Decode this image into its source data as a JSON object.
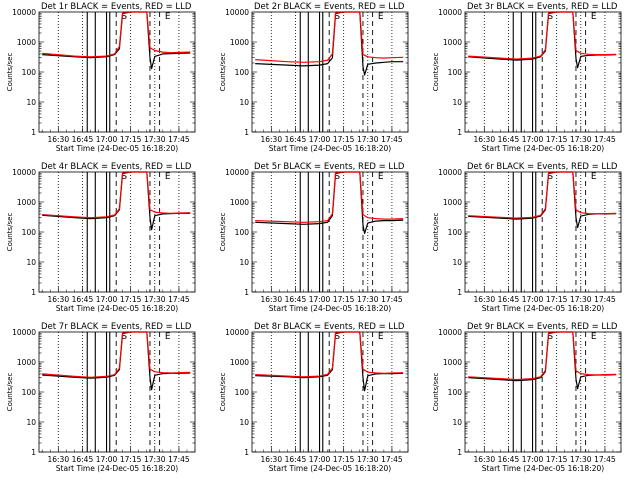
{
  "colors": {
    "events": "#000000",
    "lld": "#ff0000",
    "background": "#ffffff"
  },
  "chart_data": [
    {
      "type": "line",
      "title": "Det 1r  BLACK = Events, RED = LLD",
      "ylabel": "Counts/sec",
      "xlabel": "Start Time (24-Dec-05 16:18:20)",
      "y_scale": "log",
      "ylim": [
        1,
        10000
      ],
      "y_tick_labels": [
        "1",
        "10",
        "100",
        "1000",
        "10000"
      ],
      "x_tick_labels": [
        "16:30",
        "16:45",
        "17:00",
        "17:15",
        "17:30",
        "17:45"
      ],
      "annotations": [
        "S",
        "E"
      ],
      "grid": false,
      "series": [
        {
          "color": "black",
          "x": [
            "16:20",
            "16:40",
            "16:50",
            "17:00",
            "17:05",
            "17:08",
            "17:10",
            "17:15",
            "17:20",
            "17:25",
            "17:27",
            "17:28",
            "17:30",
            "17:35",
            "17:40",
            "17:45",
            "17:52"
          ],
          "y": [
            380,
            320,
            300,
            320,
            380,
            600,
            9000,
            10000,
            10000,
            10000,
            300,
            130,
            330,
            400,
            410,
            420,
            430
          ]
        },
        {
          "color": "red",
          "x": [
            "16:20",
            "16:40",
            "16:50",
            "17:00",
            "17:05",
            "17:08",
            "17:10",
            "17:15",
            "17:20",
            "17:25",
            "17:27",
            "17:30",
            "17:35",
            "17:40",
            "17:45",
            "17:52"
          ],
          "y": [
            420,
            340,
            320,
            340,
            400,
            700,
            10000,
            10000,
            10000,
            10000,
            650,
            520,
            460,
            440,
            450,
            460
          ]
        }
      ]
    },
    {
      "type": "line",
      "title": "Det 2r  BLACK = Events, RED = LLD",
      "ylabel": "Counts/sec",
      "xlabel": "Start Time (24-Dec-05 16:18:20)",
      "y_scale": "log",
      "ylim": [
        1,
        10000
      ],
      "y_tick_labels": [
        "1",
        "10",
        "100",
        "1000",
        "10000"
      ],
      "x_tick_labels": [
        "16:30",
        "16:45",
        "17:00",
        "17:15",
        "17:30",
        "17:45"
      ],
      "annotations": [
        "S",
        "E"
      ],
      "grid": false,
      "series": [
        {
          "color": "black",
          "x": [
            "16:20",
            "16:40",
            "16:50",
            "17:00",
            "17:05",
            "17:08",
            "17:10",
            "17:15",
            "17:20",
            "17:25",
            "17:27",
            "17:28",
            "17:30",
            "17:35",
            "17:40",
            "17:45",
            "17:52"
          ],
          "y": [
            190,
            170,
            160,
            170,
            190,
            300,
            9000,
            10000,
            10000,
            10000,
            150,
            80,
            180,
            200,
            210,
            220,
            220
          ]
        },
        {
          "color": "red",
          "x": [
            "16:20",
            "16:40",
            "16:50",
            "17:00",
            "17:05",
            "17:08",
            "17:10",
            "17:15",
            "17:20",
            "17:25",
            "17:27",
            "17:30",
            "17:35",
            "17:40",
            "17:45",
            "17:52"
          ],
          "y": [
            260,
            220,
            210,
            220,
            250,
            400,
            10000,
            10000,
            10000,
            10000,
            380,
            320,
            300,
            290,
            300,
            310
          ]
        }
      ]
    },
    {
      "type": "line",
      "title": "Det 3r  BLACK = Events, RED = LLD",
      "ylabel": "Counts/sec",
      "xlabel": "Start Time (24-Dec-05 16:18:20)",
      "y_scale": "log",
      "ylim": [
        1,
        10000
      ],
      "y_tick_labels": [
        "1",
        "10",
        "100",
        "1000",
        "10000"
      ],
      "x_tick_labels": [
        "16:30",
        "16:45",
        "17:00",
        "17:15",
        "17:30",
        "17:45"
      ],
      "annotations": [
        "S",
        "E"
      ],
      "grid": false,
      "series": [
        {
          "color": "black",
          "x": [
            "16:20",
            "16:40",
            "16:50",
            "17:00",
            "17:05",
            "17:08",
            "17:10",
            "17:15",
            "17:20",
            "17:25",
            "17:27",
            "17:28",
            "17:30",
            "17:35",
            "17:40",
            "17:45",
            "17:52"
          ],
          "y": [
            320,
            270,
            250,
            270,
            320,
            500,
            9000,
            10000,
            10000,
            10000,
            280,
            140,
            330,
            360,
            370,
            370,
            380
          ]
        },
        {
          "color": "red",
          "x": [
            "16:20",
            "16:40",
            "16:50",
            "17:00",
            "17:05",
            "17:08",
            "17:10",
            "17:15",
            "17:20",
            "17:25",
            "17:27",
            "17:30",
            "17:35",
            "17:40",
            "17:45",
            "17:52"
          ],
          "y": [
            340,
            290,
            270,
            290,
            340,
            550,
            10000,
            10000,
            10000,
            10000,
            520,
            420,
            390,
            380,
            380,
            390
          ]
        }
      ]
    },
    {
      "type": "line",
      "title": "Det 4r  BLACK = Events, RED = LLD",
      "ylabel": "Counts/sec",
      "xlabel": "Start Time (24-Dec-05 16:18:20)",
      "y_scale": "log",
      "ylim": [
        1,
        10000
      ],
      "y_tick_labels": [
        "1",
        "10",
        "100",
        "1000",
        "10000"
      ],
      "x_tick_labels": [
        "16:30",
        "16:45",
        "17:00",
        "17:15",
        "17:30",
        "17:45"
      ],
      "annotations": [
        "S",
        "E"
      ],
      "grid": false,
      "series": [
        {
          "color": "black",
          "x": [
            "16:20",
            "16:40",
            "16:50",
            "17:00",
            "17:05",
            "17:08",
            "17:10",
            "17:15",
            "17:20",
            "17:25",
            "17:27",
            "17:28",
            "17:30",
            "17:35",
            "17:40",
            "17:45",
            "17:52"
          ],
          "y": [
            360,
            300,
            280,
            300,
            350,
            550,
            9000,
            10000,
            10000,
            10000,
            300,
            120,
            350,
            400,
            410,
            420,
            420
          ]
        },
        {
          "color": "red",
          "x": [
            "16:20",
            "16:40",
            "16:50",
            "17:00",
            "17:05",
            "17:08",
            "17:10",
            "17:15",
            "17:20",
            "17:25",
            "17:27",
            "17:30",
            "17:35",
            "17:40",
            "17:45",
            "17:52"
          ],
          "y": [
            380,
            320,
            300,
            320,
            370,
            600,
            10000,
            10000,
            10000,
            10000,
            560,
            460,
            430,
            420,
            430,
            440
          ]
        }
      ]
    },
    {
      "type": "line",
      "title": "Det 5r  BLACK = Events, RED = LLD",
      "ylabel": "Counts/sec",
      "xlabel": "Start Time (24-Dec-05 16:18:20)",
      "y_scale": "log",
      "ylim": [
        1,
        10000
      ],
      "y_tick_labels": [
        "1",
        "10",
        "100",
        "1000",
        "10000"
      ],
      "x_tick_labels": [
        "16:30",
        "16:45",
        "17:00",
        "17:15",
        "17:30",
        "17:45"
      ],
      "annotations": [
        "S",
        "E"
      ],
      "grid": false,
      "series": [
        {
          "color": "black",
          "x": [
            "16:20",
            "16:40",
            "16:50",
            "17:00",
            "17:05",
            "17:08",
            "17:10",
            "17:15",
            "17:20",
            "17:25",
            "17:27",
            "17:28",
            "17:30",
            "17:35",
            "17:40",
            "17:45",
            "17:52"
          ],
          "y": [
            210,
            190,
            180,
            190,
            210,
            350,
            9000,
            10000,
            10000,
            10000,
            170,
            90,
            200,
            230,
            240,
            240,
            250
          ]
        },
        {
          "color": "red",
          "x": [
            "16:20",
            "16:40",
            "16:50",
            "17:00",
            "17:05",
            "17:08",
            "17:10",
            "17:15",
            "17:20",
            "17:25",
            "17:27",
            "17:30",
            "17:35",
            "17:40",
            "17:45",
            "17:52"
          ],
          "y": [
            240,
            220,
            210,
            220,
            240,
            400,
            10000,
            10000,
            10000,
            10000,
            380,
            300,
            280,
            270,
            270,
            280
          ]
        }
      ]
    },
    {
      "type": "line",
      "title": "Det 6r  BLACK = Events, RED = LLD",
      "ylabel": "Counts/sec",
      "xlabel": "Start Time (24-Dec-05 16:18:20)",
      "y_scale": "log",
      "ylim": [
        1,
        10000
      ],
      "y_tick_labels": [
        "1",
        "10",
        "100",
        "1000",
        "10000"
      ],
      "x_tick_labels": [
        "16:30",
        "16:45",
        "17:00",
        "17:15",
        "17:30",
        "17:45"
      ],
      "annotations": [
        "S",
        "E"
      ],
      "grid": false,
      "series": [
        {
          "color": "black",
          "x": [
            "16:20",
            "16:40",
            "16:50",
            "17:00",
            "17:05",
            "17:08",
            "17:10",
            "17:15",
            "17:20",
            "17:25",
            "17:27",
            "17:28",
            "17:30",
            "17:35",
            "17:40",
            "17:45",
            "17:52"
          ],
          "y": [
            330,
            290,
            270,
            290,
            340,
            550,
            9000,
            10000,
            10000,
            10000,
            300,
            140,
            340,
            390,
            400,
            400,
            410
          ]
        },
        {
          "color": "red",
          "x": [
            "16:20",
            "16:40",
            "16:50",
            "17:00",
            "17:05",
            "17:08",
            "17:10",
            "17:15",
            "17:20",
            "17:25",
            "17:27",
            "17:30",
            "17:35",
            "17:40",
            "17:45",
            "17:52"
          ],
          "y": [
            350,
            310,
            290,
            310,
            360,
            600,
            10000,
            10000,
            10000,
            10000,
            550,
            440,
            410,
            400,
            410,
            420
          ]
        }
      ]
    },
    {
      "type": "line",
      "title": "Det 7r  BLACK = Events, RED = LLD",
      "ylabel": "Counts/sec",
      "xlabel": "Start Time (24-Dec-05 16:18:20)",
      "y_scale": "log",
      "ylim": [
        1,
        10000
      ],
      "y_tick_labels": [
        "1",
        "10",
        "100",
        "1000",
        "10000"
      ],
      "x_tick_labels": [
        "16:30",
        "16:45",
        "17:00",
        "17:15",
        "17:30",
        "17:45"
      ],
      "annotations": [
        "S",
        "E"
      ],
      "grid": false,
      "series": [
        {
          "color": "black",
          "x": [
            "16:20",
            "16:40",
            "16:50",
            "17:00",
            "17:05",
            "17:08",
            "17:10",
            "17:15",
            "17:20",
            "17:25",
            "17:27",
            "17:28",
            "17:30",
            "17:35",
            "17:40",
            "17:45",
            "17:52"
          ],
          "y": [
            370,
            310,
            290,
            310,
            360,
            560,
            9000,
            10000,
            10000,
            10000,
            300,
            120,
            360,
            410,
            420,
            420,
            430
          ]
        },
        {
          "color": "red",
          "x": [
            "16:20",
            "16:40",
            "16:50",
            "17:00",
            "17:05",
            "17:08",
            "17:10",
            "17:15",
            "17:20",
            "17:25",
            "17:27",
            "17:30",
            "17:35",
            "17:40",
            "17:45",
            "17:52"
          ],
          "y": [
            400,
            330,
            310,
            330,
            380,
            620,
            10000,
            10000,
            10000,
            10000,
            580,
            470,
            440,
            430,
            440,
            450
          ]
        }
      ]
    },
    {
      "type": "line",
      "title": "Det 8r  BLACK = Events, RED = LLD",
      "ylabel": "Counts/sec",
      "xlabel": "Start Time (24-Dec-05 16:18:20)",
      "y_scale": "log",
      "ylim": [
        1,
        10000
      ],
      "y_tick_labels": [
        "1",
        "10",
        "100",
        "1000",
        "10000"
      ],
      "x_tick_labels": [
        "16:30",
        "16:45",
        "17:00",
        "17:15",
        "17:30",
        "17:45"
      ],
      "annotations": [
        "S",
        "E"
      ],
      "grid": false,
      "series": [
        {
          "color": "black",
          "x": [
            "16:20",
            "16:40",
            "16:50",
            "17:00",
            "17:05",
            "17:08",
            "17:10",
            "17:15",
            "17:20",
            "17:25",
            "17:27",
            "17:28",
            "17:30",
            "17:35",
            "17:40",
            "17:45",
            "17:52"
          ],
          "y": [
            350,
            320,
            300,
            320,
            360,
            560,
            9000,
            10000,
            10000,
            10000,
            290,
            110,
            350,
            400,
            410,
            410,
            420
          ]
        },
        {
          "color": "red",
          "x": [
            "16:20",
            "16:40",
            "16:50",
            "17:00",
            "17:05",
            "17:08",
            "17:10",
            "17:15",
            "17:20",
            "17:25",
            "17:27",
            "17:30",
            "17:35",
            "17:40",
            "17:45",
            "17:52"
          ],
          "y": [
            380,
            340,
            320,
            340,
            390,
            620,
            10000,
            10000,
            10000,
            10000,
            570,
            460,
            430,
            420,
            430,
            440
          ]
        }
      ]
    },
    {
      "type": "line",
      "title": "Det 9r  BLACK = Events, RED = LLD",
      "ylabel": "Counts/sec",
      "xlabel": "Start Time (24-Dec-05 16:18:20)",
      "y_scale": "log",
      "ylim": [
        1,
        10000
      ],
      "y_tick_labels": [
        "1",
        "10",
        "100",
        "1000",
        "10000"
      ],
      "x_tick_labels": [
        "16:30",
        "16:45",
        "17:00",
        "17:15",
        "17:30",
        "17:45"
      ],
      "annotations": [
        "S",
        "E"
      ],
      "grid": false,
      "series": [
        {
          "color": "black",
          "x": [
            "16:20",
            "16:40",
            "16:50",
            "17:00",
            "17:05",
            "17:08",
            "17:10",
            "17:15",
            "17:20",
            "17:25",
            "17:27",
            "17:28",
            "17:30",
            "17:35",
            "17:40",
            "17:45",
            "17:52"
          ],
          "y": [
            300,
            260,
            240,
            260,
            300,
            480,
            9000,
            10000,
            10000,
            10000,
            270,
            130,
            320,
            360,
            370,
            370,
            380
          ]
        },
        {
          "color": "red",
          "x": [
            "16:20",
            "16:40",
            "16:50",
            "17:00",
            "17:05",
            "17:08",
            "17:10",
            "17:15",
            "17:20",
            "17:25",
            "17:27",
            "17:30",
            "17:35",
            "17:40",
            "17:45",
            "17:52"
          ],
          "y": [
            320,
            280,
            260,
            280,
            320,
            520,
            10000,
            10000,
            10000,
            10000,
            510,
            410,
            380,
            370,
            380,
            390
          ]
        }
      ]
    }
  ]
}
